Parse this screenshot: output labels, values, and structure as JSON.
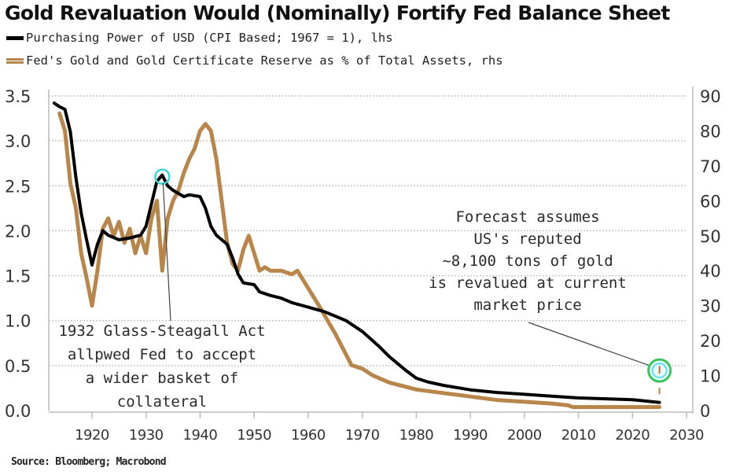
{
  "chart_data": {
    "type": "line",
    "title": "Gold Revaluation Would (Nominally) Fortify Fed Balance Sheet",
    "source": "Source: Bloomberg; Macrobond",
    "xlabel": "",
    "x_ticks": [
      "1920",
      "1930",
      "1940",
      "1950",
      "1960",
      "1970",
      "1980",
      "1990",
      "2000",
      "2010",
      "2020",
      "2030"
    ],
    "xlim": [
      1912,
      2030
    ],
    "left_axis": {
      "label": "lhs",
      "ylim": [
        0,
        3.5
      ],
      "ticks": [
        "0.0",
        "0.5",
        "1.0",
        "1.5",
        "2.0",
        "2.5",
        "3.0",
        "3.5"
      ]
    },
    "right_axis": {
      "label": "rhs",
      "ylim": [
        0,
        90
      ],
      "ticks": [
        "0",
        "10",
        "20",
        "30",
        "40",
        "50",
        "60",
        "70",
        "80",
        "90"
      ]
    },
    "grid": true,
    "legend": "top-left",
    "series": [
      {
        "name": "Purchasing Power of USD (CPI Based; 1967 = 1), lhs",
        "axis": "left",
        "color": "#000000",
        "x": [
          1913,
          1914,
          1915,
          1916,
          1917,
          1918,
          1919,
          1920,
          1921,
          1922,
          1923,
          1925,
          1927,
          1929,
          1930,
          1931,
          1932,
          1933,
          1934,
          1935,
          1937,
          1938,
          1940,
          1941,
          1942,
          1943,
          1945,
          1946,
          1947,
          1948,
          1950,
          1951,
          1953,
          1955,
          1957,
          1960,
          1963,
          1965,
          1967,
          1970,
          1973,
          1975,
          1978,
          1980,
          1982,
          1985,
          1990,
          1995,
          2000,
          2005,
          2010,
          2015,
          2020,
          2025
        ],
        "y": [
          3.42,
          3.38,
          3.35,
          3.1,
          2.6,
          2.2,
          1.9,
          1.62,
          1.85,
          2.0,
          1.95,
          1.9,
          1.92,
          1.95,
          2.05,
          2.3,
          2.55,
          2.62,
          2.5,
          2.45,
          2.38,
          2.4,
          2.38,
          2.25,
          2.05,
          1.95,
          1.85,
          1.7,
          1.52,
          1.42,
          1.4,
          1.32,
          1.28,
          1.25,
          1.2,
          1.15,
          1.1,
          1.05,
          1.0,
          0.88,
          0.72,
          0.6,
          0.45,
          0.36,
          0.32,
          0.28,
          0.23,
          0.2,
          0.18,
          0.16,
          0.14,
          0.13,
          0.12,
          0.09
        ]
      },
      {
        "name": "Fed's Gold and Gold Certificate Reserve as % of Total Assets, rhs",
        "axis": "right",
        "color": "#b8864a",
        "x": [
          1914,
          1915,
          1916,
          1917,
          1918,
          1919,
          1920,
          1921,
          1922,
          1923,
          1924,
          1925,
          1926,
          1927,
          1928,
          1929,
          1930,
          1931,
          1932,
          1933,
          1934,
          1935,
          1936,
          1937,
          1938,
          1939,
          1940,
          1941,
          1942,
          1943,
          1944,
          1945,
          1946,
          1947,
          1948,
          1949,
          1950,
          1951,
          1952,
          1953,
          1955,
          1957,
          1958,
          1960,
          1962,
          1965,
          1968,
          1970,
          1972,
          1975,
          1980,
          1985,
          1990,
          1995,
          2000,
          2005,
          2008,
          2009,
          2015,
          2020,
          2024,
          2025
        ],
        "y": [
          85,
          80,
          65,
          58,
          45,
          38,
          30,
          40,
          52,
          55,
          50,
          54,
          48,
          52,
          45,
          50,
          45,
          55,
          60,
          40,
          55,
          60,
          63,
          68,
          72,
          75,
          80,
          82,
          80,
          72,
          60,
          48,
          42,
          40,
          46,
          50,
          45,
          40,
          41,
          40,
          40,
          39,
          40,
          35,
          30,
          22,
          13,
          12,
          10,
          8,
          6,
          5,
          4,
          3,
          2.5,
          2,
          1.5,
          1,
          1,
          1,
          1,
          1
        ]
      }
    ],
    "annotations": [
      {
        "text": [
          "1932 Glass-Steagall Act",
          "allpwed Fed to accept",
          "a wider basket of",
          "collateral"
        ],
        "points_to": {
          "x": 1933,
          "y_lhs": 2.62
        }
      },
      {
        "text": [
          "Forecast assumes",
          "US's reputed",
          "~8,100 tons of gold",
          "is revalued at current",
          "market price"
        ],
        "points_to": {
          "x": 2025,
          "y_rhs": 11
        }
      }
    ]
  }
}
